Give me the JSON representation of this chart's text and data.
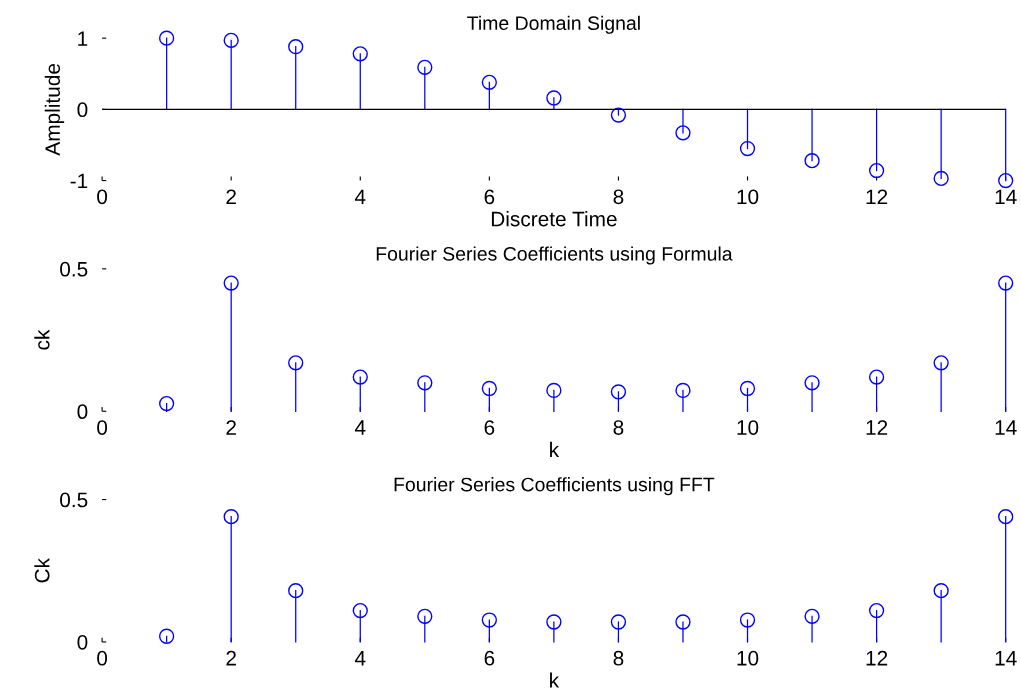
{
  "chart_data": [
    {
      "type": "lollipop",
      "title": "Time Domain Signal",
      "xlabel": "Discrete Time",
      "ylabel": "Amplitude",
      "x": [
        1,
        2,
        3,
        4,
        5,
        6,
        7,
        8,
        9,
        10,
        11,
        12,
        13,
        14
      ],
      "values": [
        1,
        0.97,
        0.88,
        0.78,
        0.59,
        0.38,
        0.16,
        -0.08,
        -0.33,
        -0.55,
        -0.72,
        -0.86,
        -0.97,
        -1
      ],
      "color": "#0000ff",
      "marker": "circle",
      "xlim": [
        0,
        14
      ],
      "xticks": [
        0,
        2,
        4,
        6,
        8,
        10,
        12,
        14
      ],
      "ylim": [
        -1,
        1
      ],
      "yticks": [
        -1,
        0,
        1
      ],
      "grid": false,
      "ref_lines": [
        {
          "axis": "y",
          "value": 0,
          "color": "#000000"
        }
      ]
    },
    {
      "type": "lollipop",
      "title": "Fourier Series Coefficients using Formula",
      "xlabel": "k",
      "ylabel": "ck",
      "x": [
        1,
        2,
        3,
        4,
        5,
        6,
        7,
        8,
        9,
        10,
        11,
        12,
        13,
        14
      ],
      "values": [
        0.027,
        0.45,
        0.17,
        0.12,
        0.1,
        0.08,
        0.073,
        0.068,
        0.073,
        0.08,
        0.1,
        0.12,
        0.17,
        0.45
      ],
      "color": "#0000ff",
      "marker": "circle",
      "xlim": [
        0,
        14
      ],
      "xticks": [
        0,
        2,
        4,
        6,
        8,
        10,
        12,
        14
      ],
      "ylim": [
        0,
        0.5
      ],
      "yticks": [
        0,
        0.5
      ],
      "grid": false
    },
    {
      "type": "lollipop",
      "title": "Fourier Series Coefficients using FFT",
      "xlabel": "k",
      "ylabel": "Ck",
      "x": [
        1,
        2,
        3,
        4,
        5,
        6,
        7,
        8,
        9,
        10,
        11,
        12,
        13,
        14
      ],
      "values": [
        0.02,
        0.44,
        0.18,
        0.11,
        0.09,
        0.077,
        0.07,
        0.07,
        0.07,
        0.077,
        0.09,
        0.11,
        0.18,
        0.44
      ],
      "color": "#0000ff",
      "marker": "circle",
      "xlim": [
        0,
        14
      ],
      "xticks": [
        0,
        2,
        4,
        6,
        8,
        10,
        12,
        14
      ],
      "ylim": [
        0,
        0.5
      ],
      "yticks": [
        0,
        0.5
      ],
      "grid": false
    }
  ]
}
